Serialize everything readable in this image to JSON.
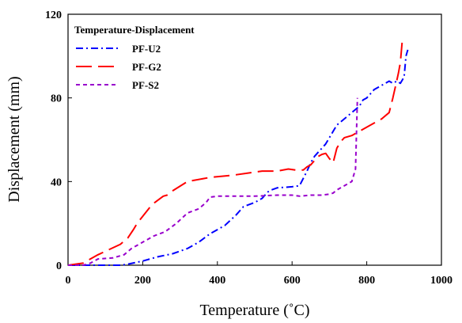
{
  "chart_data": {
    "type": "line",
    "title": "",
    "xlabel": "Temperature (˚C)",
    "ylabel": "Displacement (mm)",
    "xlim": [
      0,
      1000
    ],
    "ylim": [
      0,
      120
    ],
    "xticks": [
      "0",
      "200",
      "400",
      "600",
      "800",
      "1000"
    ],
    "yticks": [
      "0",
      "40",
      "80",
      "120"
    ],
    "grid": false,
    "legend": {
      "title": "Temperature-Displacement",
      "placement": "top-left"
    },
    "series": [
      {
        "name": "PF-U2",
        "color": "#0000ff",
        "dash": "dash-dot",
        "x": [
          0,
          60,
          100,
          140,
          160,
          200,
          240,
          280,
          320,
          350,
          380,
          420,
          450,
          470,
          500,
          520,
          535,
          545,
          560,
          600,
          620,
          640,
          650,
          660,
          670,
          680,
          690,
          700,
          710,
          720,
          740,
          760,
          780,
          790,
          800,
          820,
          840,
          860,
          870,
          880,
          890,
          900,
          905,
          910
        ],
        "y": [
          0,
          0,
          0,
          0,
          0.5,
          2,
          4,
          5.5,
          8,
          11,
          15,
          19,
          24,
          28,
          30,
          32,
          35,
          36,
          37,
          37.5,
          38,
          45,
          49,
          52,
          54,
          56,
          58,
          61,
          64,
          67,
          70,
          73,
          76,
          79,
          80,
          84,
          86,
          88,
          87,
          88,
          87,
          90,
          100,
          103
        ]
      },
      {
        "name": "PF-G2",
        "color": "#ff0000",
        "dash": "long-dash",
        "x": [
          0,
          40,
          80,
          140,
          160,
          175,
          185,
          225,
          240,
          255,
          265,
          275,
          320,
          380,
          440,
          480,
          520,
          560,
          590,
          610,
          630,
          640,
          650,
          660,
          670,
          680,
          690,
          700,
          710,
          720,
          730,
          740,
          760,
          800,
          820,
          840,
          860,
          870,
          880,
          885,
          890,
          895
        ],
        "y": [
          0,
          1,
          5,
          10,
          13,
          17,
          20,
          29,
          31,
          33,
          33.5,
          35,
          40,
          42,
          43,
          44,
          45,
          45,
          46,
          45.5,
          45.5,
          47,
          48,
          50,
          52,
          53,
          53.5,
          51,
          49,
          56,
          59,
          61,
          62,
          66,
          68,
          70,
          73,
          80,
          88,
          92,
          97,
          107
        ]
      },
      {
        "name": "PF-S2",
        "color": "#9900cc",
        "dash": "short-dash",
        "x": [
          0,
          40,
          60,
          80,
          120,
          150,
          170,
          200,
          230,
          260,
          290,
          320,
          350,
          370,
          380,
          400,
          500,
          560,
          600,
          620,
          650,
          680,
          700,
          710,
          720,
          740,
          760,
          770,
          775
        ],
        "y": [
          0,
          0,
          1,
          3,
          3.5,
          5,
          8,
          11,
          14,
          16,
          20,
          25,
          27,
          30,
          32.5,
          33,
          33,
          33.5,
          33.5,
          33,
          33.5,
          33.5,
          34,
          34.5,
          36,
          38,
          40,
          46,
          80
        ]
      }
    ]
  }
}
